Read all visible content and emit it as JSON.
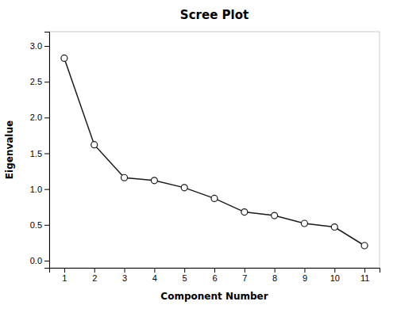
{
  "chart_data": {
    "type": "line",
    "title": "Scree Plot",
    "xlabel": "Component Number",
    "ylabel": "Eigenvalue",
    "x": [
      1,
      2,
      3,
      4,
      5,
      6,
      7,
      8,
      9,
      10,
      11
    ],
    "values": [
      2.83,
      1.62,
      1.16,
      1.12,
      1.02,
      0.87,
      0.68,
      0.63,
      0.52,
      0.47,
      0.21
    ],
    "color": "#1a1a1a",
    "marker": "circle",
    "grid": false,
    "xlim": [
      0.5,
      11.5
    ],
    "xticks": [
      1,
      2,
      3,
      4,
      5,
      6,
      7,
      8,
      9,
      10,
      11
    ],
    "ylim": [
      -0.1,
      3.2
    ],
    "yticks": [
      {
        "value": 0,
        "label": "0.0"
      },
      0.5,
      {
        "value": 1,
        "label": "1.0"
      },
      1.5,
      {
        "value": 2,
        "label": "2.0"
      },
      2.5,
      {
        "value": 3,
        "label": "3.0"
      }
    ]
  }
}
